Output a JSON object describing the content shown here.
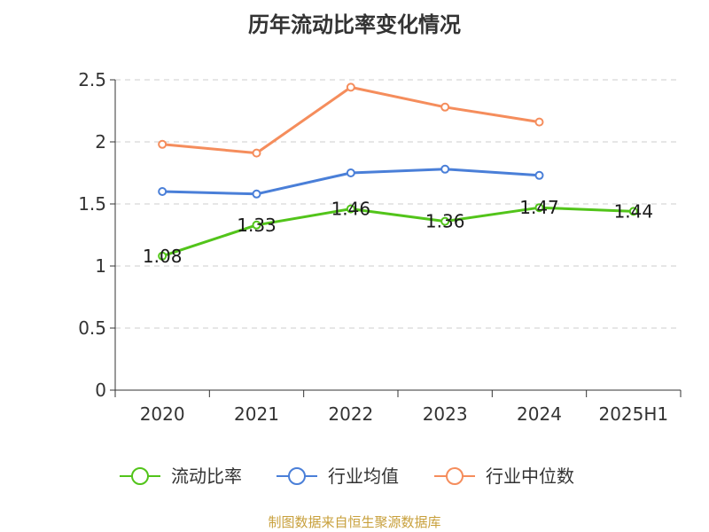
{
  "chart_data": {
    "type": "line",
    "title": "历年流动比率变化情况",
    "categories": [
      "2020",
      "2021",
      "2022",
      "2023",
      "2024",
      "2025H1"
    ],
    "ylim": [
      0,
      2.5
    ],
    "yticks": [
      "0",
      "0.5",
      "1",
      "1.5",
      "2",
      "2.5"
    ],
    "grid": true,
    "legend_position": "bottom",
    "series": [
      {
        "name": "流动比率",
        "color": "#52c41a",
        "values": [
          1.08,
          1.33,
          1.46,
          1.36,
          1.47,
          1.44
        ],
        "show_labels": true
      },
      {
        "name": "行业均值",
        "color": "#4a7fd8",
        "values": [
          1.6,
          1.58,
          1.75,
          1.78,
          1.73,
          null
        ],
        "show_labels": false
      },
      {
        "name": "行业中位数",
        "color": "#f58d5c",
        "values": [
          1.98,
          1.91,
          2.44,
          2.28,
          2.16,
          null
        ],
        "show_labels": false
      }
    ]
  },
  "source_note": "制图数据来自恒生聚源数据库"
}
